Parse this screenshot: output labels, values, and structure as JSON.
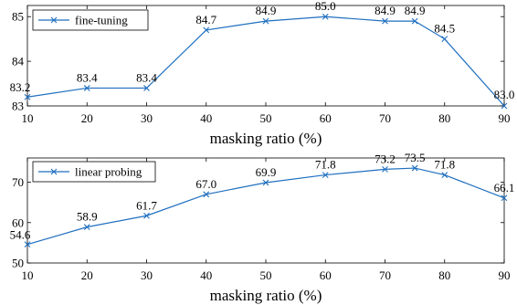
{
  "chart_data": [
    {
      "type": "line",
      "x": [
        10,
        20,
        30,
        40,
        50,
        60,
        70,
        75,
        80,
        90
      ],
      "series": [
        {
          "name": "fine-tuning",
          "values": [
            83.2,
            83.4,
            83.4,
            84.7,
            84.9,
            85.0,
            84.9,
            84.9,
            84.5,
            83.0
          ],
          "labels": [
            "83.2",
            "83.4",
            "83.4",
            "84.7",
            "84.9",
            "85.0",
            "84.9",
            "84.9",
            "84.5",
            "83.0"
          ]
        }
      ],
      "xlabel": "masking ratio (%)",
      "xticks": [
        10,
        20,
        30,
        40,
        50,
        60,
        70,
        80,
        90
      ],
      "xtick_labels": [
        "10",
        "20",
        "30",
        "40",
        "50",
        "60",
        "70",
        "80",
        "90"
      ],
      "yticks": [
        83,
        84,
        85
      ],
      "ytick_labels": [
        "83",
        "84",
        "85"
      ],
      "xlim": [
        10,
        90
      ],
      "ylim": [
        83,
        85.25
      ],
      "legend": "top-left",
      "color": "#1f6fbf",
      "marker": "x"
    },
    {
      "type": "line",
      "x": [
        10,
        20,
        30,
        40,
        50,
        60,
        70,
        75,
        80,
        90
      ],
      "series": [
        {
          "name": "linear probing",
          "values": [
            54.6,
            58.9,
            61.7,
            67.0,
            69.9,
            71.8,
            73.2,
            73.5,
            71.8,
            66.1
          ],
          "labels": [
            "54.6",
            "58.9",
            "61.7",
            "67.0",
            "69.9",
            "71.8",
            "73.2",
            "73.5",
            "71.8",
            "66.1"
          ]
        }
      ],
      "xlabel": "masking ratio (%)",
      "xticks": [
        10,
        20,
        30,
        40,
        50,
        60,
        70,
        80,
        90
      ],
      "xtick_labels": [
        "10",
        "20",
        "30",
        "40",
        "50",
        "60",
        "70",
        "80",
        "90"
      ],
      "yticks": [
        50,
        60,
        70
      ],
      "ytick_labels": [
        "50",
        "60",
        "70"
      ],
      "xlim": [
        10,
        90
      ],
      "ylim": [
        50,
        76
      ],
      "legend": "top-left",
      "color": "#1f6fbf",
      "marker": "x"
    }
  ]
}
